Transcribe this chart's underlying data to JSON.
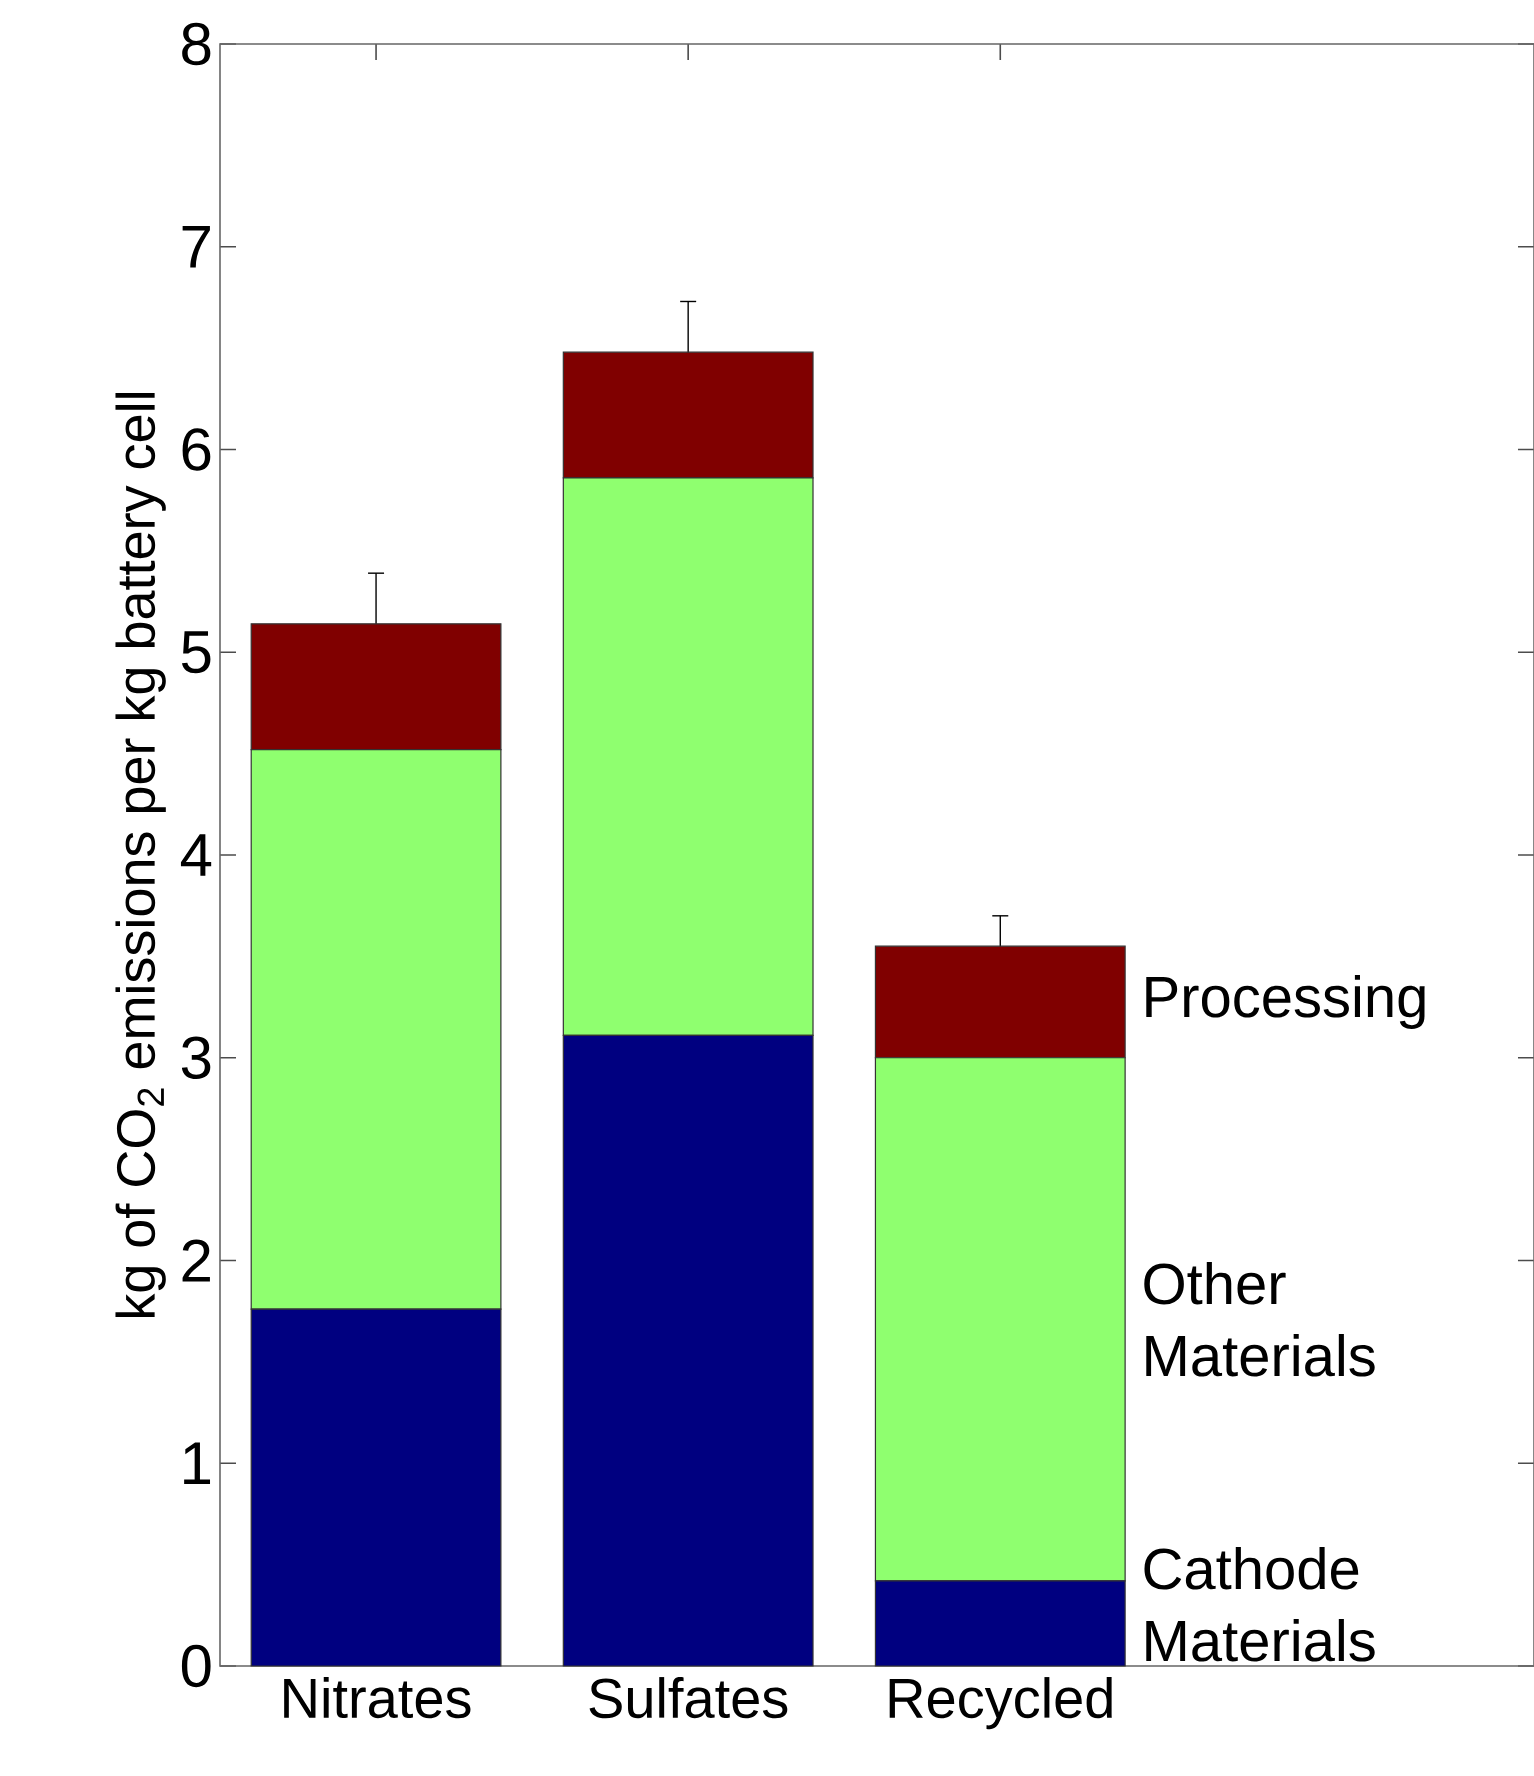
{
  "chart_data": {
    "type": "bar",
    "stacked": true,
    "ylabel": "kg of CO$_{2}$ emissions per kg battery cell",
    "categories": [
      "Nitrates",
      "Sulfates",
      "Recycled"
    ],
    "series": [
      {
        "name": "Cathode Materials",
        "color": "#000080",
        "values": [
          1.76,
          3.11,
          0.42
        ]
      },
      {
        "name": "Other Materials",
        "color": "#8fff6f",
        "values": [
          2.76,
          2.75,
          2.58
        ]
      },
      {
        "name": "Processing",
        "color": "#800000",
        "values": [
          0.62,
          0.62,
          0.55
        ],
        "errors": [
          0.25,
          0.25,
          0.15
        ]
      }
    ],
    "ylim": [
      0,
      8
    ],
    "yticks": [
      0,
      1,
      2,
      3,
      4,
      5,
      6,
      7,
      8
    ],
    "grid": false,
    "legend": false
  }
}
